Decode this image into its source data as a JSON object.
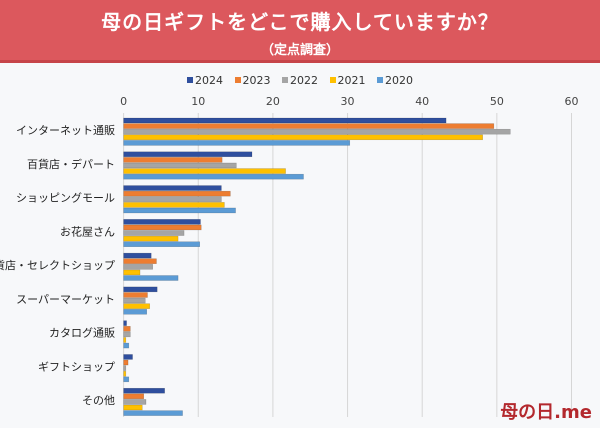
{
  "header": {
    "title": "母の日ギフトをどこで購入していますか？",
    "subtitle": "（定点調査）"
  },
  "logo": "母の日.me",
  "chart_data": {
    "type": "bar",
    "orientation": "horizontal",
    "title": "母の日ギフトをどこで購入していますか？",
    "subtitle": "（定点調査）",
    "xlim": [
      0,
      60
    ],
    "xticks": [
      "0",
      "10",
      "20",
      "30",
      "40",
      "50",
      "60"
    ],
    "grid": true,
    "legend_position": "top",
    "categories": [
      "インターネット通販",
      "百貨店・デパート",
      "ショッピングモール",
      "お花屋さん",
      "雑貨店・セレクトショップ",
      "スーパーマーケット",
      "カタログ通販",
      "ギフトショップ",
      "その他"
    ],
    "series": [
      {
        "name": "2024",
        "color": "#2f4f9e",
        "values": [
          43.2,
          17.2,
          13.1,
          10.3,
          3.7,
          4.5,
          0.4,
          1.2,
          5.5
        ]
      },
      {
        "name": "2023",
        "color": "#ed7d31",
        "values": [
          49.6,
          13.2,
          14.3,
          10.4,
          4.4,
          3.2,
          0.9,
          0.6,
          2.7
        ]
      },
      {
        "name": "2022",
        "color": "#a5a5a5",
        "values": [
          51.8,
          15.1,
          13.1,
          8.1,
          3.9,
          2.9,
          0.9,
          0.3,
          3.0
        ]
      },
      {
        "name": "2021",
        "color": "#ffc000",
        "values": [
          48.1,
          21.7,
          13.5,
          7.3,
          2.2,
          3.5,
          0.3,
          0.3,
          2.5
        ]
      },
      {
        "name": "2020",
        "color": "#5b9bd5",
        "values": [
          30.3,
          24.1,
          15.0,
          10.2,
          7.3,
          3.1,
          0.7,
          0.7,
          7.9
        ]
      }
    ]
  }
}
